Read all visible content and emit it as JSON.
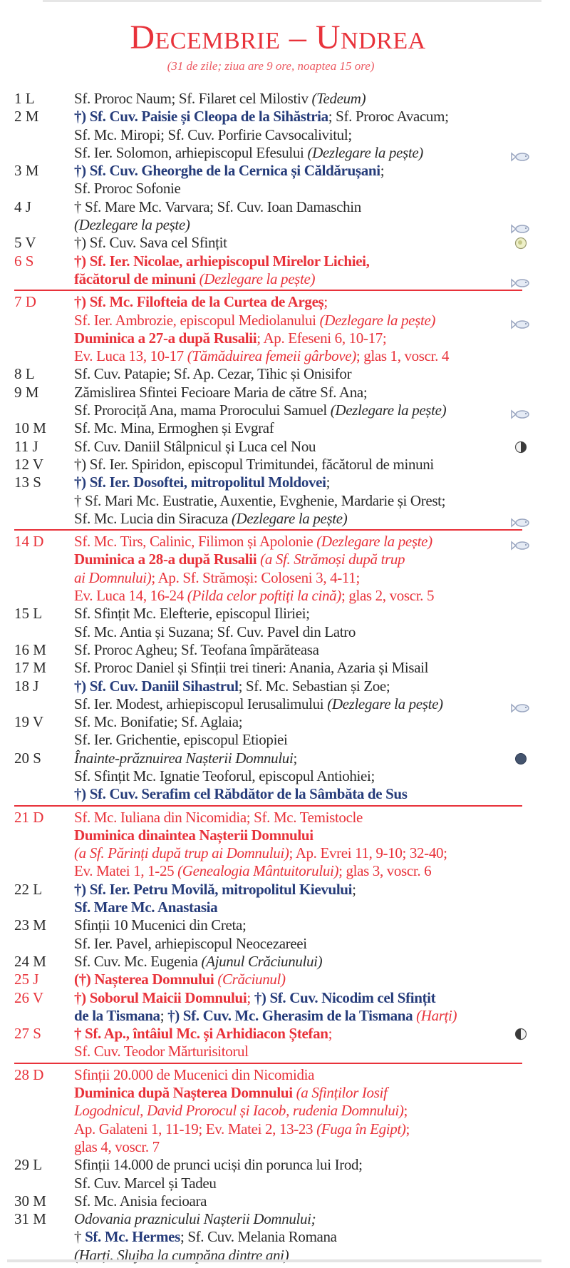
{
  "header": {
    "title": "Decembrie – Undrea",
    "subtitle": "(31 de zile; ziua are 9 ore, noaptea 15 ore)"
  },
  "colors": {
    "red": "#e8323a",
    "blue": "#263c7a",
    "text": "#2b2b2b"
  },
  "entries": [
    {
      "day": "1 L",
      "red": false,
      "sunday": false,
      "lines": [
        {
          "segs": [
            {
              "t": "Sf. Proroc Naum; Sf. Filaret cel Milostiv ",
              "s": "n"
            },
            {
              "t": "(Tedeum)",
              "s": "i"
            }
          ]
        }
      ]
    },
    {
      "day": "2 M",
      "red": false,
      "sunday": false,
      "lines": [
        {
          "segs": [
            {
              "t": "†) Sf. Cuv. Paisie și Cleopa de la Sihăstria",
              "s": "bb"
            },
            {
              "t": "; Sf. Proroc Avacum;",
              "s": "n"
            }
          ]
        },
        {
          "segs": [
            {
              "t": "Sf. Mc. Miropi; Sf. Cuv. Porfirie Cavsocalivitul;",
              "s": "n"
            }
          ]
        },
        {
          "segs": [
            {
              "t": "Sf. Ier. Solomon, arhiepiscopul Efesului ",
              "s": "n"
            },
            {
              "t": "(Dezlegare la pește)",
              "s": "i"
            }
          ],
          "icon": "fish-icon"
        }
      ]
    },
    {
      "day": "3 M",
      "red": false,
      "sunday": false,
      "lines": [
        {
          "segs": [
            {
              "t": "†) Sf. Cuv. Gheorghe de la Cernica și Căldărușani",
              "s": "bb"
            },
            {
              "t": ";",
              "s": "n"
            }
          ]
        },
        {
          "segs": [
            {
              "t": "Sf. Proroc Sofonie",
              "s": "n"
            }
          ]
        }
      ]
    },
    {
      "day": "4 J",
      "red": false,
      "sunday": false,
      "lines": [
        {
          "segs": [
            {
              "t": "† Sf. Mare Mc. Varvara; Sf. Cuv. Ioan Damaschin",
              "s": "n"
            }
          ]
        },
        {
          "segs": [
            {
              "t": "(Dezlegare la pește)",
              "s": "i"
            }
          ],
          "icon": "fish-icon"
        }
      ]
    },
    {
      "day": "5 V",
      "red": false,
      "sunday": false,
      "lines": [
        {
          "segs": [
            {
              "t": "†) Sf. Cuv. Sava cel Sfințit",
              "s": "n"
            }
          ],
          "icon": "full-moon-icon"
        }
      ]
    },
    {
      "day": "6 S",
      "red": true,
      "sunday": false,
      "lines": [
        {
          "segs": [
            {
              "t": "†) Sf. Ier. Nicolae, arhiepiscopul Mirelor Lichiei,",
              "s": "br"
            }
          ]
        },
        {
          "segs": [
            {
              "t": "făcătorul de minuni ",
              "s": "br"
            },
            {
              "t": "(Dezlegare la pește)",
              "s": "ri"
            }
          ],
          "icon": "fish-icon"
        }
      ]
    },
    {
      "day": "7 D",
      "red": true,
      "sunday": true,
      "lines": [
        {
          "segs": [
            {
              "t": "†) Sf. Mc. Filofteia de la Curtea de Argeș",
              "s": "br"
            },
            {
              "t": ";",
              "s": "rn"
            }
          ]
        },
        {
          "segs": [
            {
              "t": "Sf. Ier. Ambrozie, episcopul Mediolanului ",
              "s": "rn"
            },
            {
              "t": "(Dezlegare la pește)",
              "s": "ri"
            }
          ],
          "icon": "fish-icon"
        },
        {
          "segs": [
            {
              "t": "Duminica a 27-a după Rusalii",
              "s": "br"
            },
            {
              "t": "; Ap. Efeseni 6, 10-17;",
              "s": "rn"
            }
          ]
        },
        {
          "segs": [
            {
              "t": "Ev. Luca 13, 10-17 ",
              "s": "rn"
            },
            {
              "t": "(Tămăduirea femeii gârbove)",
              "s": "ri"
            },
            {
              "t": "; glas 1, voscr. 4",
              "s": "rn"
            }
          ]
        }
      ]
    },
    {
      "day": "8 L",
      "red": false,
      "sunday": false,
      "lines": [
        {
          "segs": [
            {
              "t": "Sf. Cuv. Patapie; Sf. Ap. Cezar, Tihic și Onisifor",
              "s": "n"
            }
          ]
        }
      ]
    },
    {
      "day": "9 M",
      "red": false,
      "sunday": false,
      "lines": [
        {
          "segs": [
            {
              "t": "Zămislirea Sfintei Fecioare Maria de către Sf. Ana;",
              "s": "n"
            }
          ]
        },
        {
          "segs": [
            {
              "t": "Sf. Prorociță Ana, mama Prorocului Samuel ",
              "s": "n"
            },
            {
              "t": "(Dezlegare la pește)",
              "s": "i"
            }
          ],
          "icon": "fish-icon"
        }
      ]
    },
    {
      "day": "10 M",
      "red": false,
      "sunday": false,
      "lines": [
        {
          "segs": [
            {
              "t": "Sf. Mc. Mina, Ermoghen și Evgraf",
              "s": "n"
            }
          ]
        }
      ]
    },
    {
      "day": "11 J",
      "red": false,
      "sunday": false,
      "lines": [
        {
          "segs": [
            {
              "t": "Sf. Cuv. Daniil Stâlpnicul și Luca cel Nou",
              "s": "n"
            }
          ],
          "icon": "first-quarter-moon-icon"
        }
      ]
    },
    {
      "day": "12 V",
      "red": false,
      "sunday": false,
      "lines": [
        {
          "segs": [
            {
              "t": "†) Sf. Ier. Spiridon, episcopul Trimitundei, făcătorul de minuni",
              "s": "n"
            }
          ]
        }
      ]
    },
    {
      "day": "13 S",
      "red": false,
      "sunday": false,
      "lines": [
        {
          "segs": [
            {
              "t": "†) Sf. Ier. Dosoftei, mitropolitul Moldovei",
              "s": "bb"
            },
            {
              "t": ";",
              "s": "n"
            }
          ]
        },
        {
          "segs": [
            {
              "t": "† Sf. Mari Mc. Eustratie, Auxentie, Evghenie, Mardarie și Orest;",
              "s": "n"
            }
          ]
        },
        {
          "segs": [
            {
              "t": "Sf. Mc. Lucia din Siracuza ",
              "s": "n"
            },
            {
              "t": "(Dezlegare la pește)",
              "s": "i"
            }
          ],
          "icon": "fish-icon"
        }
      ]
    },
    {
      "day": "14 D",
      "red": true,
      "sunday": true,
      "lines": [
        {
          "segs": [
            {
              "t": "Sf. Mc. Tirs, Calinic, Filimon și Apolonie ",
              "s": "rn"
            },
            {
              "t": "(Dezlegare la pește)",
              "s": "ri"
            }
          ],
          "icon": "fish-icon"
        },
        {
          "segs": [
            {
              "t": "Duminica a 28-a după Rusalii ",
              "s": "br"
            },
            {
              "t": "(a Sf. Strămoși după trup",
              "s": "ri"
            }
          ]
        },
        {
          "segs": [
            {
              "t": "ai Domnului)",
              "s": "ri"
            },
            {
              "t": "; Ap. Sf. Strămoși: Coloseni 3, 4-11;",
              "s": "rn"
            }
          ]
        },
        {
          "segs": [
            {
              "t": "Ev. Luca 14, 16-24 ",
              "s": "rn"
            },
            {
              "t": "(Pilda celor poftiți la cină)",
              "s": "ri"
            },
            {
              "t": "; glas 2, voscr. 5",
              "s": "rn"
            }
          ]
        }
      ]
    },
    {
      "day": "15 L",
      "red": false,
      "sunday": false,
      "lines": [
        {
          "segs": [
            {
              "t": "Sf. Sfințit Mc. Elefterie, episcopul Iliriei;",
              "s": "n"
            }
          ]
        },
        {
          "segs": [
            {
              "t": "Sf. Mc. Antia și Suzana; Sf. Cuv. Pavel din Latro",
              "s": "n"
            }
          ]
        }
      ]
    },
    {
      "day": "16 M",
      "red": false,
      "sunday": false,
      "lines": [
        {
          "segs": [
            {
              "t": "Sf. Proroc Agheu; Sf. Teofana împărăteasa",
              "s": "n"
            }
          ]
        }
      ]
    },
    {
      "day": "17 M",
      "red": false,
      "sunday": false,
      "lines": [
        {
          "segs": [
            {
              "t": "Sf. Proroc Daniel și Sfinții trei tineri: Anania, Azaria și Misail",
              "s": "n"
            }
          ]
        }
      ]
    },
    {
      "day": "18 J",
      "red": false,
      "sunday": false,
      "lines": [
        {
          "segs": [
            {
              "t": "†) Sf. Cuv. Daniil Sihastrul",
              "s": "bb"
            },
            {
              "t": "; Sf. Mc. Sebastian și Zoe;",
              "s": "n"
            }
          ]
        },
        {
          "segs": [
            {
              "t": "Sf. Ier. Modest, arhiepiscopul Ierusalimului ",
              "s": "n"
            },
            {
              "t": "(Dezlegare la pește)",
              "s": "i"
            }
          ],
          "icon": "fish-icon"
        }
      ]
    },
    {
      "day": "19 V",
      "red": false,
      "sunday": false,
      "lines": [
        {
          "segs": [
            {
              "t": "Sf. Mc. Bonifatie; Sf. Aglaia;",
              "s": "n"
            }
          ]
        },
        {
          "segs": [
            {
              "t": "Sf. Ier. Grichentie, episcopul Etiopiei",
              "s": "n"
            }
          ]
        }
      ]
    },
    {
      "day": "20 S",
      "red": false,
      "sunday": false,
      "lines": [
        {
          "segs": [
            {
              "t": "Înainte-prăznuirea Nașterii Domnului",
              "s": "i"
            },
            {
              "t": ";",
              "s": "n"
            }
          ],
          "icon": "new-moon-icon"
        },
        {
          "segs": [
            {
              "t": "Sf. Sfințit Mc. Ignatie Teoforul, episcopul Antiohiei;",
              "s": "n"
            }
          ]
        },
        {
          "segs": [
            {
              "t": "†) Sf. Cuv. Serafim cel Răbdător de la Sâmbăta de Sus",
              "s": "bb"
            }
          ]
        }
      ]
    },
    {
      "day": "21 D",
      "red": true,
      "sunday": true,
      "lines": [
        {
          "segs": [
            {
              "t": "Sf. Mc. Iuliana din Nicomidia; Sf. Mc. Temistocle",
              "s": "rn"
            }
          ]
        },
        {
          "segs": [
            {
              "t": "Duminica dinaintea Nașterii Domnului",
              "s": "br"
            }
          ]
        },
        {
          "segs": [
            {
              "t": "(a Sf. Părinți după trup ai Domnului)",
              "s": "ri"
            },
            {
              "t": "; Ap. Evrei 11, 9-10; 32-40;",
              "s": "rn"
            }
          ]
        },
        {
          "segs": [
            {
              "t": "Ev. Matei 1, 1-25 ",
              "s": "rn"
            },
            {
              "t": "(Genealogia Mântuitorului)",
              "s": "ri"
            },
            {
              "t": "; glas 3, voscr. 6",
              "s": "rn"
            }
          ]
        }
      ]
    },
    {
      "day": "22 L",
      "red": false,
      "sunday": false,
      "lines": [
        {
          "segs": [
            {
              "t": "†) Sf. Ier. Petru Movilă, mitropolitul Kievului",
              "s": "bb"
            },
            {
              "t": ";",
              "s": "n"
            }
          ]
        },
        {
          "segs": [
            {
              "t": "Sf. Mare Mc. Anastasia",
              "s": "bb"
            }
          ]
        }
      ]
    },
    {
      "day": "23 M",
      "red": false,
      "sunday": false,
      "lines": [
        {
          "segs": [
            {
              "t": "Sfinții 10 Mucenici din Creta;",
              "s": "n"
            }
          ]
        },
        {
          "segs": [
            {
              "t": "Sf. Ier. Pavel, arhiepiscopul Neocezareei",
              "s": "n"
            }
          ]
        }
      ]
    },
    {
      "day": "24 M",
      "red": false,
      "sunday": false,
      "lines": [
        {
          "segs": [
            {
              "t": "Sf. Cuv. Mc. Eugenia ",
              "s": "n"
            },
            {
              "t": "(Ajunul Crăciunului)",
              "s": "i"
            }
          ]
        }
      ]
    },
    {
      "day": "25 J",
      "red": true,
      "sunday": false,
      "lines": [
        {
          "segs": [
            {
              "t": "(†) Nașterea Domnului ",
              "s": "br"
            },
            {
              "t": "(Crăciunul)",
              "s": "ri"
            }
          ]
        }
      ]
    },
    {
      "day": "26 V",
      "red": true,
      "sunday": false,
      "lines": [
        {
          "segs": [
            {
              "t": "†) Soborul Maicii Domnului",
              "s": "br"
            },
            {
              "t": "; ",
              "s": "rn"
            },
            {
              "t": "†) Sf. Cuv. Nicodim cel Sfințit",
              "s": "bb"
            }
          ]
        },
        {
          "segs": [
            {
              "t": "de la Tismana",
              "s": "bb"
            },
            {
              "t": "; ",
              "s": "n"
            },
            {
              "t": "†) Sf. Cuv. Mc. Gherasim de la Tismana ",
              "s": "bb"
            },
            {
              "t": "(Harți)",
              "s": "ri"
            }
          ]
        }
      ]
    },
    {
      "day": "27 S",
      "red": true,
      "sunday": false,
      "lines": [
        {
          "segs": [
            {
              "t": "† Sf. Ap., întâiul Mc. și Arhidiacon Ștefan",
              "s": "br"
            },
            {
              "t": ";",
              "s": "rn"
            }
          ],
          "icon": "last-quarter-moon-icon"
        },
        {
          "segs": [
            {
              "t": "Sf. Cuv. Teodor Mărturisitorul",
              "s": "rn"
            }
          ]
        }
      ]
    },
    {
      "day": "28 D",
      "red": true,
      "sunday": true,
      "lines": [
        {
          "segs": [
            {
              "t": "Sfinții 20.000 de Mucenici din Nicomidia",
              "s": "rn"
            }
          ]
        },
        {
          "segs": [
            {
              "t": "Duminica după Nașterea Domnului ",
              "s": "br"
            },
            {
              "t": "(a Sfinților Iosif",
              "s": "ri"
            }
          ]
        },
        {
          "segs": [
            {
              "t": "Logodnicul, David Prorocul și Iacob, rudenia Domnului)",
              "s": "ri"
            },
            {
              "t": ";",
              "s": "rn"
            }
          ]
        },
        {
          "segs": [
            {
              "t": "Ap. Galateni 1, 11-19; Ev. Matei 2, 13-23 ",
              "s": "rn"
            },
            {
              "t": "(Fuga în Egipt)",
              "s": "ri"
            },
            {
              "t": ";",
              "s": "rn"
            }
          ]
        },
        {
          "segs": [
            {
              "t": "glas 4, voscr. 7",
              "s": "rn"
            }
          ]
        }
      ]
    },
    {
      "day": "29 L",
      "red": false,
      "sunday": false,
      "lines": [
        {
          "segs": [
            {
              "t": "Sfinții 14.000 de prunci uciși din porunca lui Irod;",
              "s": "n"
            }
          ]
        },
        {
          "segs": [
            {
              "t": "Sf. Cuv. Marcel și Tadeu",
              "s": "n"
            }
          ]
        }
      ]
    },
    {
      "day": "30 M",
      "red": false,
      "sunday": false,
      "lines": [
        {
          "segs": [
            {
              "t": "Sf. Mc. Anisia fecioara",
              "s": "n"
            }
          ]
        }
      ]
    },
    {
      "day": "31 M",
      "red": false,
      "sunday": false,
      "lines": [
        {
          "segs": [
            {
              "t": "Odovania praznicului Nașterii Domnului;",
              "s": "i"
            }
          ]
        },
        {
          "segs": [
            {
              "t": "† ",
              "s": "n"
            },
            {
              "t": "Sf. Mc. Hermes",
              "s": "bb"
            },
            {
              "t": "; Sf. Cuv. Melania Romana",
              "s": "n"
            }
          ]
        },
        {
          "segs": [
            {
              "t": "(Harți. Slujba la cumpăna dintre ani)",
              "s": "i"
            }
          ]
        }
      ]
    }
  ]
}
